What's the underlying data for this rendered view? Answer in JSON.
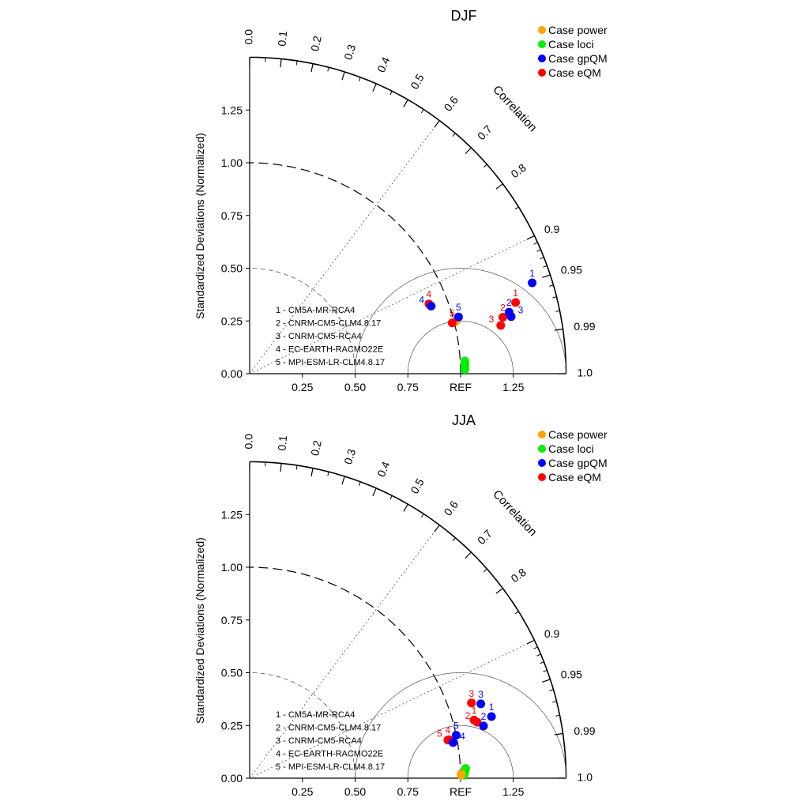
{
  "chart_data": [
    {
      "type": "scatter",
      "subtype": "taylor-diagram",
      "title": "DJF",
      "ylabel": "Standardized Deviations (Normalized)",
      "corr_axis_label": "Correlation",
      "sd_range": [
        0,
        1.5
      ],
      "sd_ticks": [
        "0.00",
        "0.25",
        "0.50",
        "0.75",
        "1.00",
        "1.25"
      ],
      "x_ticks": [
        "0.25",
        "0.50",
        "0.75",
        "REF",
        "1.25"
      ],
      "corr_ticks": [
        "0.0",
        "0.1",
        "0.2",
        "0.3",
        "0.4",
        "0.5",
        "0.6",
        "0.7",
        "0.8",
        "0.9",
        "0.95",
        "0.99",
        "1.0"
      ],
      "legend": [
        "Case power",
        "Case loci",
        "Case gpQM",
        "Case eQM"
      ],
      "models": [
        "1 - CM5A-MR-RCA4",
        "2 - CNRM-CM5-CLM4.8.17",
        "3 - CNRM-CM5-RCA4",
        "4 - EC-EARTH-RACMO22E",
        "5 - MPI-ESM-LR-CLM4.8.17"
      ],
      "series": [
        {
          "name": "Case power",
          "color": "#ffa500",
          "labeled": false,
          "points": [
            {
              "model": "5",
              "sd": 1.011,
              "corr": 0.969
            }
          ]
        },
        {
          "name": "Case loci",
          "color": "#00ee00",
          "labeled": false,
          "points": [
            {
              "model": "1",
              "sd": 1.022,
              "corr": 0.9983
            },
            {
              "model": "2",
              "sd": 1.021,
              "corr": 0.9988
            },
            {
              "model": "3",
              "sd": 1.021,
              "corr": 0.9992
            },
            {
              "model": "4",
              "sd": 1.02,
              "corr": 0.9996
            },
            {
              "model": "5",
              "sd": 1.02,
              "corr": 0.9998
            }
          ]
        },
        {
          "name": "Case eQM",
          "color": "#ff0000",
          "labeled": true,
          "points": [
            {
              "model": "1",
              "sd": 1.305,
              "corr": 0.966
            },
            {
              "model": "2",
              "sd": 1.23,
              "corr": 0.976
            },
            {
              "model": "3",
              "sd": 1.212,
              "corr": 0.982
            },
            {
              "model": "4",
              "sd": 0.912,
              "corr": 0.932
            },
            {
              "model": "5",
              "sd": 0.99,
              "corr": 0.97
            }
          ]
        },
        {
          "name": "Case gpQM",
          "color": "#0000ff",
          "labeled": true,
          "points": [
            {
              "model": "1",
              "sd": 1.407,
              "corr": 0.952
            },
            {
              "model": "2",
              "sd": 1.264,
              "corr": 0.973
            },
            {
              "model": "3",
              "sd": 1.269,
              "corr": 0.977
            },
            {
              "model": "4",
              "sd": 0.918,
              "corr": 0.937
            },
            {
              "model": "5",
              "sd": 1.026,
              "corr": 0.965
            }
          ]
        }
      ]
    },
    {
      "type": "scatter",
      "subtype": "taylor-diagram",
      "title": "JJA",
      "ylabel": "Standardized Deviations (Normalized)",
      "corr_axis_label": "Correlation",
      "sd_range": [
        0,
        1.5
      ],
      "sd_ticks": [
        "0.00",
        "0.25",
        "0.50",
        "0.75",
        "1.00",
        "1.25"
      ],
      "x_ticks": [
        "0.25",
        "0.50",
        "0.75",
        "REF",
        "1.25"
      ],
      "corr_ticks": [
        "0.0",
        "0.1",
        "0.2",
        "0.3",
        "0.4",
        "0.5",
        "0.6",
        "0.7",
        "0.8",
        "0.9",
        "0.95",
        "0.99",
        "1.0"
      ],
      "legend": [
        "Case power",
        "Case loci",
        "Case gpQM",
        "Case eQM"
      ],
      "models": [
        "1 - CM5A-MR-RCA4",
        "2 - CNRM-CM5-CLM4.8.17",
        "3 - CNRM-CM5-RCA4",
        "4 - EC-EARTH-RACMO22E",
        "5 - MPI-ESM-LR-CLM4.8.17"
      ],
      "series": [
        {
          "name": "Case loci",
          "color": "#00ee00",
          "labeled": false,
          "points": [
            {
              "model": "1",
              "sd": 1.025,
              "corr": 0.999
            },
            {
              "model": "2",
              "sd": 1.022,
              "corr": 0.9993
            },
            {
              "model": "3",
              "sd": 1.02,
              "corr": 0.9996
            },
            {
              "model": "4",
              "sd": 1.018,
              "corr": 0.9998
            },
            {
              "model": "5",
              "sd": 1.016,
              "corr": 0.9999
            }
          ]
        },
        {
          "name": "Case power",
          "color": "#ffa500",
          "labeled": false,
          "points": [
            {
              "model": "1",
              "sd": 1.004,
              "corr": 0.9998
            },
            {
              "model": "2",
              "sd": 1.002,
              "corr": 0.9999
            }
          ]
        },
        {
          "name": "Case eQM",
          "color": "#ff0000",
          "labeled": true,
          "points": [
            {
              "model": "1",
              "sd": 1.099,
              "corr": 0.968
            },
            {
              "model": "2",
              "sd": 1.111,
              "corr": 0.971
            },
            {
              "model": "3",
              "sd": 1.11,
              "corr": 0.947
            },
            {
              "model": "4",
              "sd": 0.957,
              "corr": 0.982
            },
            {
              "model": "5",
              "sd": 0.963,
              "corr": 0.982
            }
          ]
        },
        {
          "name": "Case gpQM",
          "color": "#0000ff",
          "labeled": true,
          "points": [
            {
              "model": "1",
              "sd": 1.183,
              "corr": 0.969
            },
            {
              "model": "2",
              "sd": 1.136,
              "corr": 0.976
            },
            {
              "model": "3",
              "sd": 1.151,
              "corr": 0.952
            },
            {
              "model": "4",
              "sd": 0.979,
              "corr": 0.985
            },
            {
              "model": "5",
              "sd": 1.0,
              "corr": 0.979
            }
          ]
        }
      ]
    }
  ]
}
